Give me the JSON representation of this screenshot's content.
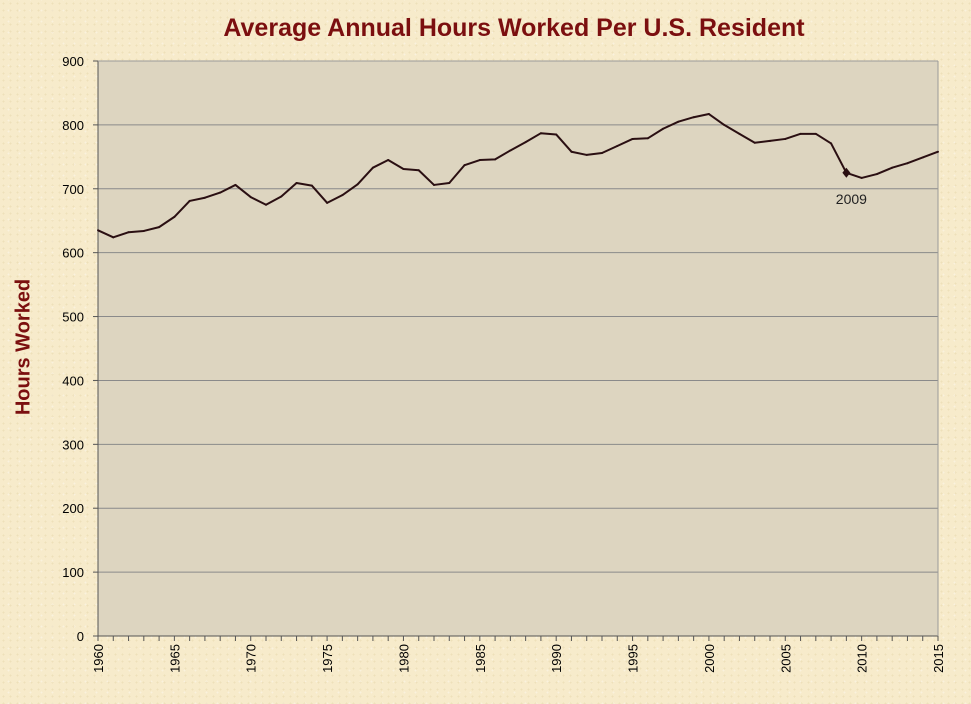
{
  "chart_data": {
    "type": "line",
    "title": "Average Annual Hours Worked Per U.S. Resident",
    "xlabel": "",
    "ylabel": "Hours Worked",
    "xlim": [
      1960,
      2015
    ],
    "ylim": [
      0,
      900
    ],
    "x_ticks": [
      "1960",
      "1965",
      "1970",
      "1975",
      "1980",
      "1985",
      "1990",
      "1995",
      "2000",
      "2005",
      "2010",
      "2015"
    ],
    "y_ticks": [
      "0",
      "100",
      "200",
      "300",
      "400",
      "500",
      "600",
      "700",
      "800",
      "900"
    ],
    "grid": true,
    "colors": {
      "plot_background": "#ddd5c0",
      "line": "#2a0f12",
      "title": "#7b0f0f",
      "page_background": "#f7ebcb"
    },
    "series": [
      {
        "x": [
          1960,
          1961,
          1962,
          1963,
          1964,
          1965,
          1966,
          1967,
          1968,
          1969,
          1970,
          1971,
          1972,
          1973,
          1974,
          1975,
          1976,
          1977,
          1978,
          1979,
          1980,
          1981,
          1982,
          1983,
          1984,
          1985,
          1986,
          1987,
          1988,
          1989,
          1990,
          1991,
          1992,
          1993,
          1994,
          1995,
          1996,
          1997,
          1998,
          1999,
          2000,
          2001,
          2002,
          2003,
          2004,
          2005,
          2006,
          2007,
          2008,
          2009,
          2010,
          2011,
          2012,
          2013,
          2014,
          2015
        ],
        "values": [
          635,
          624,
          632,
          634,
          640,
          656,
          681,
          686,
          694,
          706,
          687,
          675,
          688,
          709,
          705,
          678,
          690,
          707,
          733,
          745,
          731,
          729,
          706,
          709,
          737,
          745,
          746,
          760,
          773,
          787,
          785,
          758,
          753,
          756,
          767,
          778,
          779,
          794,
          805,
          812,
          817,
          800,
          786,
          772,
          775,
          778,
          786,
          786,
          771,
          725,
          717,
          723,
          733,
          740,
          749,
          758
        ]
      }
    ],
    "annotations": [
      {
        "x": 2009,
        "y": 725,
        "label": "2009"
      }
    ]
  }
}
